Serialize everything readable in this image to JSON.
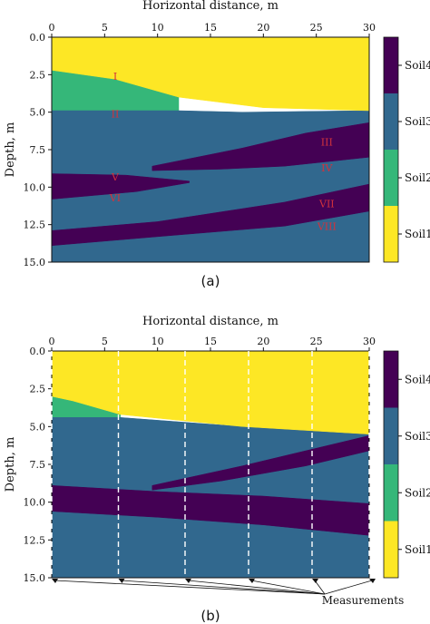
{
  "chart_data": [
    {
      "type": "heatmap",
      "panel_label": "(a)",
      "xlabel": "Horizontal distance, m",
      "ylabel": "Depth, m",
      "xlim": [
        0,
        30
      ],
      "ylim": [
        15,
        0
      ],
      "xticks": [
        "0",
        "5",
        "10",
        "15",
        "20",
        "25",
        "30"
      ],
      "yticks": [
        "0.0",
        "2.5",
        "5.0",
        "7.5",
        "10.0",
        "12.5",
        "15.0"
      ],
      "x_axis_position": "top",
      "colorbar": {
        "labels": [
          "Soil1",
          "Soil2",
          "Soil3",
          "Soil4"
        ],
        "colors": [
          "#fde725",
          "#35b779",
          "#31688e",
          "#440154"
        ]
      },
      "layers": [
        {
          "soil": "Soil2",
          "top": [
            [
              0,
              2.2
            ],
            [
              6,
              2.8
            ],
            [
              12,
              4.0
            ]
          ],
          "bottom": [
            [
              0,
              4.9
            ],
            [
              12,
              4.9
            ]
          ]
        },
        {
          "soil": "Soil3",
          "top": [
            [
              0,
              4.9
            ],
            [
              12,
              4.9
            ],
            [
              18,
              5.0
            ],
            [
              30,
              4.9
            ]
          ],
          "bottom": [
            [
              0,
              15.0
            ],
            [
              30,
              15.0
            ]
          ]
        },
        {
          "soil": "Soil1",
          "top": [
            [
              0,
              0.0
            ],
            [
              30,
              0.0
            ]
          ],
          "bottom": [
            [
              0,
              2.2
            ],
            [
              6,
              2.8
            ],
            [
              12,
              4.0
            ],
            [
              20,
              4.7
            ],
            [
              30,
              4.9
            ]
          ]
        },
        {
          "soil": "Soil4",
          "top": [
            [
              9.5,
              8.6
            ],
            [
              18,
              7.4
            ],
            [
              24,
              6.4
            ],
            [
              30,
              5.7
            ]
          ],
          "bottom": [
            [
              9.5,
              8.9
            ],
            [
              16,
              8.8
            ],
            [
              22,
              8.6
            ],
            [
              30,
              8.0
            ]
          ]
        },
        {
          "soil": "Soil4",
          "top": [
            [
              0,
              9.1
            ],
            [
              7,
              9.2
            ],
            [
              13,
              9.6
            ]
          ],
          "bottom": [
            [
              0,
              10.8
            ],
            [
              8,
              10.3
            ],
            [
              13,
              9.7
            ]
          ]
        },
        {
          "soil": "Soil4",
          "top": [
            [
              0,
              12.9
            ],
            [
              10,
              12.3
            ],
            [
              22,
              11.0
            ],
            [
              30,
              9.8
            ]
          ],
          "bottom": [
            [
              0,
              13.9
            ],
            [
              10,
              13.3
            ],
            [
              22,
              12.6
            ],
            [
              30,
              11.6
            ]
          ]
        }
      ],
      "zone_labels": [
        {
          "text": "I",
          "x": 6.0,
          "y": 2.6
        },
        {
          "text": "II",
          "x": 6.0,
          "y": 5.1
        },
        {
          "text": "III",
          "x": 26.0,
          "y": 7.0
        },
        {
          "text": "IV",
          "x": 26.0,
          "y": 8.7
        },
        {
          "text": "V",
          "x": 6.0,
          "y": 9.3
        },
        {
          "text": "VI",
          "x": 6.0,
          "y": 10.7
        },
        {
          "text": "VII",
          "x": 26.0,
          "y": 11.1
        },
        {
          "text": "VIII",
          "x": 26.0,
          "y": 12.6
        }
      ]
    },
    {
      "type": "heatmap",
      "panel_label": "(b)",
      "xlabel": "Horizontal distance, m",
      "ylabel": "Depth, m",
      "xlim": [
        0,
        30
      ],
      "ylim": [
        15,
        0
      ],
      "xticks": [
        "0",
        "5",
        "10",
        "15",
        "20",
        "25",
        "30"
      ],
      "yticks": [
        "0.0",
        "2.5",
        "5.0",
        "7.5",
        "10.0",
        "12.5",
        "15.0"
      ],
      "x_axis_position": "top",
      "colorbar": {
        "labels": [
          "Soil1",
          "Soil2",
          "Soil3",
          "Soil4"
        ],
        "colors": [
          "#fde725",
          "#35b779",
          "#31688e",
          "#440154"
        ]
      },
      "layers": [
        {
          "soil": "Soil2",
          "top": [
            [
              0,
              3.0
            ],
            [
              2,
              3.3
            ],
            [
              6.5,
              4.2
            ]
          ],
          "bottom": [
            [
              0,
              4.4
            ],
            [
              6.5,
              4.4
            ]
          ]
        },
        {
          "soil": "Soil3",
          "top": [
            [
              0,
              4.4
            ],
            [
              6.5,
              4.4
            ],
            [
              18,
              5.0
            ],
            [
              30,
              5.5
            ]
          ],
          "bottom": [
            [
              0,
              15.0
            ],
            [
              30,
              15.0
            ]
          ]
        },
        {
          "soil": "Soil1",
          "top": [
            [
              0,
              0.0
            ],
            [
              30,
              0.0
            ]
          ],
          "bottom": [
            [
              0,
              3.0
            ],
            [
              2,
              3.3
            ],
            [
              6.5,
              4.2
            ],
            [
              18,
              5.0
            ],
            [
              30,
              5.5
            ]
          ]
        },
        {
          "soil": "Soil4",
          "top": [
            [
              9.5,
              8.9
            ],
            [
              18,
              7.6
            ],
            [
              24,
              6.6
            ],
            [
              30,
              5.6
            ]
          ],
          "bottom": [
            [
              9.5,
              9.2
            ],
            [
              16,
              8.6
            ],
            [
              24,
              7.6
            ],
            [
              30,
              6.6
            ]
          ]
        },
        {
          "soil": "Soil4",
          "top": [
            [
              0,
              8.9
            ],
            [
              10,
              9.3
            ],
            [
              20,
              9.6
            ],
            [
              30,
              10.1
            ]
          ],
          "bottom": [
            [
              0,
              10.6
            ],
            [
              10,
              11.0
            ],
            [
              20,
              11.5
            ],
            [
              30,
              12.2
            ]
          ]
        }
      ],
      "measurements": {
        "label": "Measurements",
        "x": [
          0,
          6.3,
          12.6,
          18.6,
          24.6,
          30.0
        ]
      }
    }
  ]
}
